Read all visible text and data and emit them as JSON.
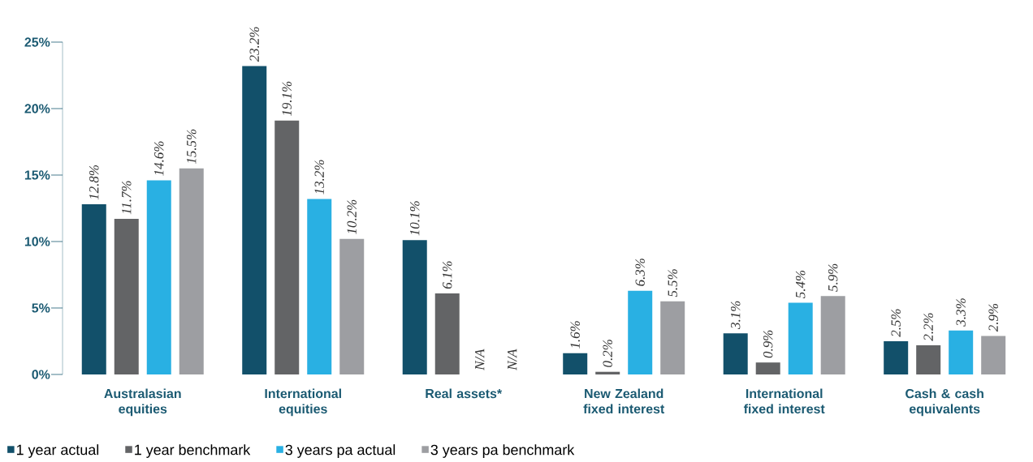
{
  "chart_data": {
    "type": "bar",
    "categories": [
      "Australasian equities",
      "International equities",
      "Real assets*",
      "New Zealand fixed interest",
      "International fixed interest",
      "Cash & cash equivalents"
    ],
    "series": [
      {
        "name": "1 year actual",
        "color": "#12506a",
        "values": [
          12.8,
          23.2,
          10.1,
          1.6,
          3.1,
          2.5
        ],
        "value_labels": [
          "12.8%",
          "23.2%",
          "10.1%",
          "1.6%",
          "3.1%",
          "2.5%"
        ]
      },
      {
        "name": "1 year benchmark",
        "color": "#636466",
        "values": [
          11.7,
          19.1,
          6.1,
          0.2,
          0.9,
          2.2
        ],
        "value_labels": [
          "11.7%",
          "19.1%",
          "6.1%",
          "0.2%",
          "0.9%",
          "2.2%"
        ]
      },
      {
        "name": "3 years pa actual",
        "color": "#29b0e3",
        "values": [
          14.6,
          13.2,
          null,
          6.3,
          5.4,
          3.3
        ],
        "value_labels": [
          "14.6%",
          "13.2%",
          "N/A",
          "6.3%",
          "5.4%",
          "3.3%"
        ]
      },
      {
        "name": "3 years pa benchmark",
        "color": "#9d9ea2",
        "values": [
          15.5,
          10.2,
          null,
          5.5,
          5.9,
          2.9
        ],
        "value_labels": [
          "15.5%",
          "10.2%",
          "N/A",
          "5.5%",
          "5.9%",
          "2.9%"
        ]
      }
    ],
    "ylim": [
      0,
      25
    ],
    "yticks": [
      {
        "value": 0,
        "label": "0%"
      },
      {
        "value": 5,
        "label": "5%"
      },
      {
        "value": 10,
        "label": "10%"
      },
      {
        "value": 15,
        "label": "15%"
      },
      {
        "value": 20,
        "label": "20%"
      },
      {
        "value": 25,
        "label": "25%"
      }
    ],
    "legend": "bottom",
    "grid": false
  }
}
